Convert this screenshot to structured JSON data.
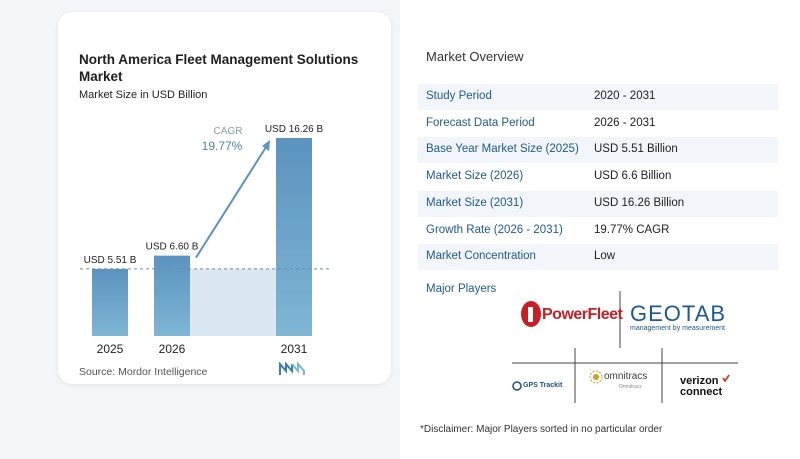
{
  "chart_data": {
    "type": "bar",
    "title": "North America Fleet Management Solutions Market",
    "subtitle": "Market Size in USD Billion",
    "categories": [
      "2025",
      "2026",
      "2031"
    ],
    "values": [
      5.51,
      6.6,
      16.26
    ],
    "data_labels": [
      "USD 5.51 B",
      "USD 6.60 B",
      "USD 16.26 B"
    ],
    "annotation": {
      "label": "CAGR",
      "value": "19.77%"
    },
    "ylim": [
      0,
      16.26
    ],
    "colors": {
      "bar_top": "#5b93bf",
      "bar_bottom": "#7fb6d4",
      "band": "#dbe7f1",
      "dashed": "#6a8fae",
      "arrow": "#5b93bf"
    }
  },
  "source": "Source:  Mordor Intelligence",
  "overview": {
    "title": "Market Overview",
    "rows": [
      {
        "label": "Study Period",
        "value": "2020 - 2031"
      },
      {
        "label": "Forecast Data Period",
        "value": "2026 - 2031"
      },
      {
        "label": "Base Year Market Size (2025)",
        "value": "USD 5.51 Billion"
      },
      {
        "label": "Market Size (2026)",
        "value": "USD 6.6 Billion"
      },
      {
        "label": "Market Size (2031)",
        "value": "USD 16.26 Billion"
      },
      {
        "label": "Growth Rate (2026 - 2031)",
        "value": "19.77% CAGR"
      },
      {
        "label": "Market Concentration",
        "value": "Low"
      }
    ]
  },
  "players": {
    "title": "Major Players",
    "logos": {
      "powerfleet": "PowerFleet",
      "geotab": "GEOTAB",
      "geotab_tagline": "management by measurement",
      "gps_trackit": "GPS Trackit",
      "omnitracs": "omnitracs",
      "omnitracs_tagline": "Omnitracs",
      "verizon_1": "verizon",
      "verizon_2": "connect"
    }
  },
  "disclaimer": "*Disclaimer: Major Players sorted in no particular order"
}
